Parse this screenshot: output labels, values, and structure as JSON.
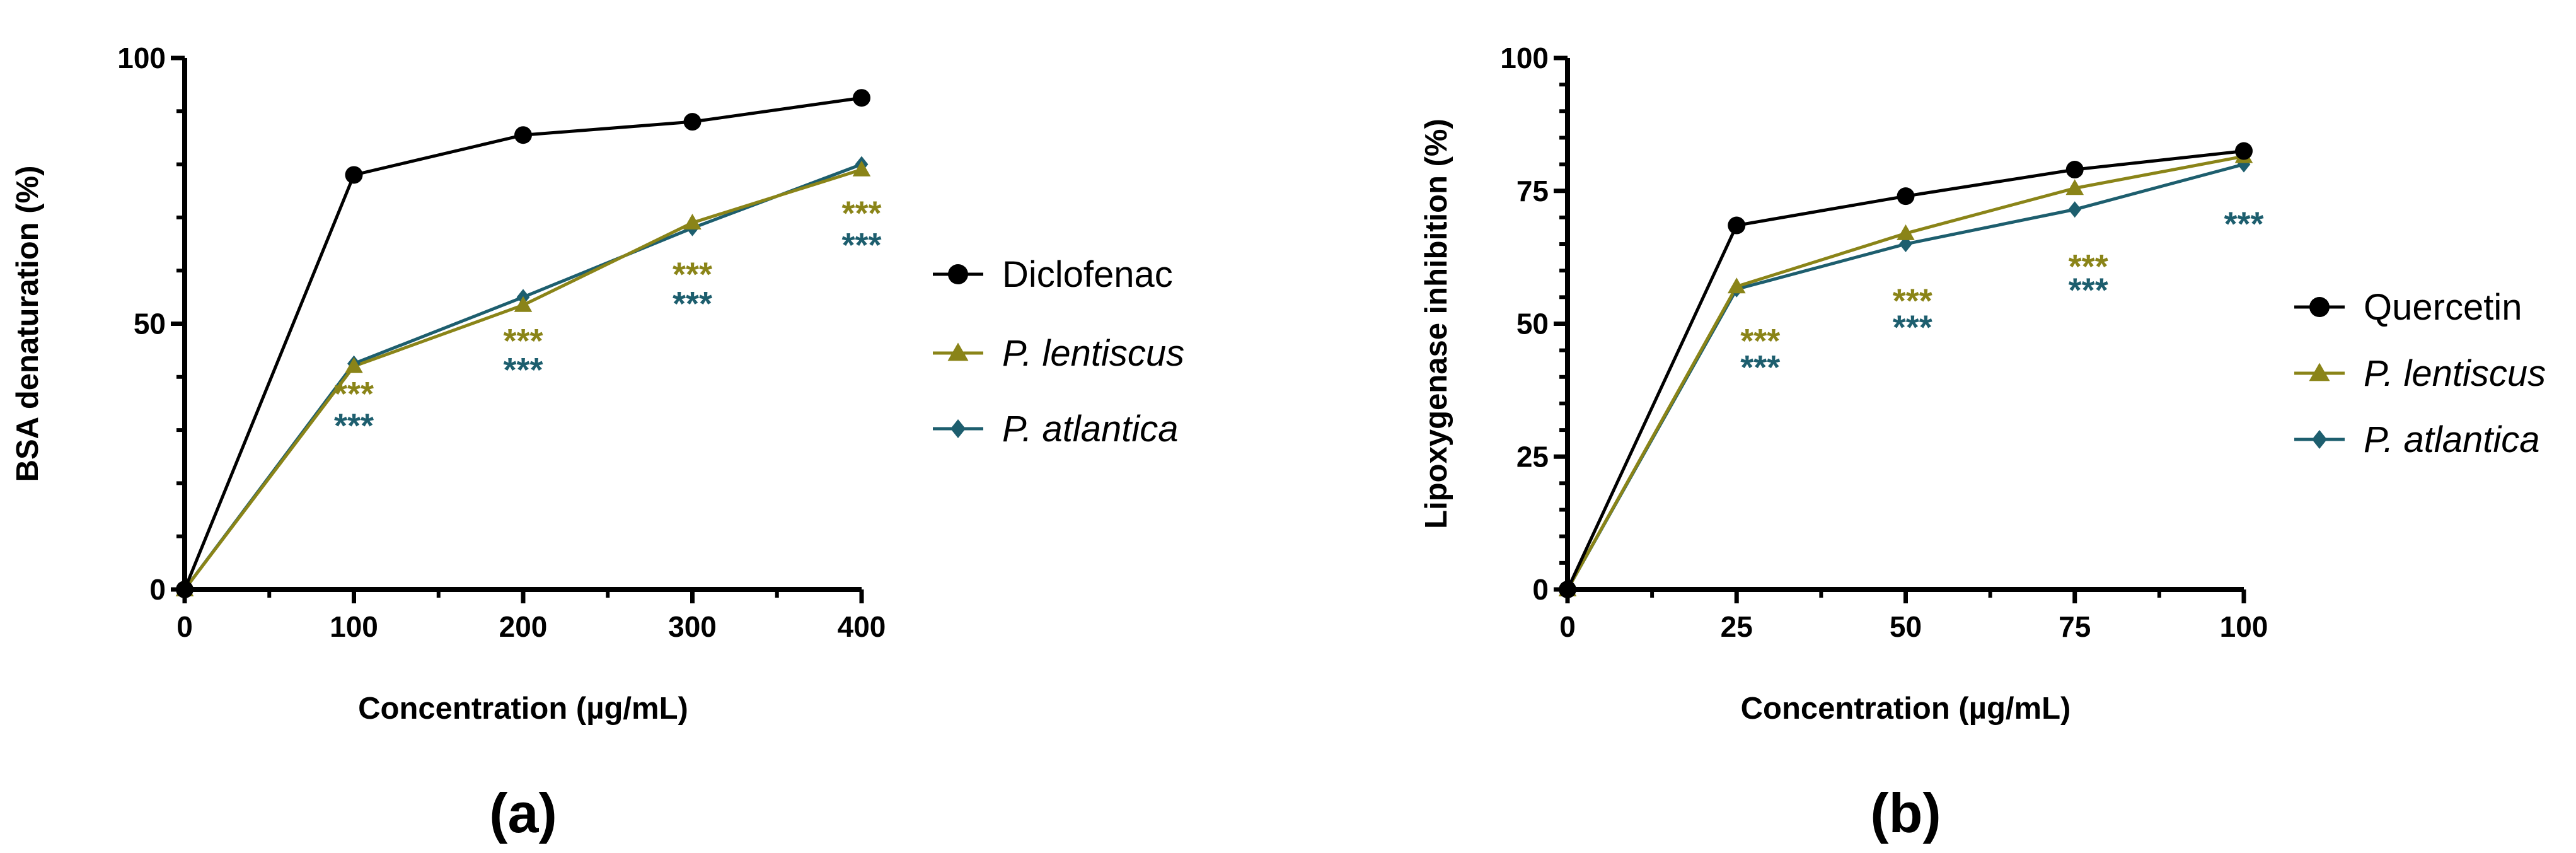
{
  "chart_data": [
    {
      "type": "line",
      "panel_label": "(a)",
      "xlabel": "Concentration (µg/mL)",
      "ylabel": "BSA denaturation (%)",
      "xlim": [
        0,
        400
      ],
      "ylim": [
        0,
        100
      ],
      "xticks": [
        "0",
        "100",
        "200",
        "300",
        "400"
      ],
      "yticks": [
        "0",
        "50",
        "100"
      ],
      "legend_position": "right",
      "x": [
        0,
        100,
        200,
        300,
        400
      ],
      "series": [
        {
          "name": "Diclofenac",
          "italic": false,
          "color": "#000000",
          "marker": "circle",
          "values": [
            0,
            78,
            85.5,
            88,
            92.5
          ]
        },
        {
          "name": "P. lentiscus",
          "italic": true,
          "color": "#8a8418",
          "marker": "triangle",
          "values": [
            0,
            42,
            53.5,
            69,
            79
          ]
        },
        {
          "name": "P. atlantica",
          "italic": true,
          "color": "#1d5e6e",
          "marker": "diamond",
          "values": [
            0,
            42.5,
            55,
            68,
            80
          ]
        }
      ],
      "annotations": [
        {
          "text": "***",
          "series": "P. lentiscus",
          "x": 100,
          "y": 37
        },
        {
          "text": "***",
          "series": "P. atlantica",
          "x": 100,
          "y": 31
        },
        {
          "text": "***",
          "series": "P. lentiscus",
          "x": 200,
          "y": 47
        },
        {
          "text": "***",
          "series": "P. atlantica",
          "x": 200,
          "y": 41.5
        },
        {
          "text": "***",
          "series": "P. lentiscus",
          "x": 300,
          "y": 59.5
        },
        {
          "text": "***",
          "series": "P. atlantica",
          "x": 300,
          "y": 54
        },
        {
          "text": "***",
          "series": "P. lentiscus",
          "x": 400,
          "y": 71
        },
        {
          "text": "***",
          "series": "P. atlantica",
          "x": 400,
          "y": 65
        }
      ]
    },
    {
      "type": "line",
      "panel_label": "(b)",
      "xlabel": "Concentration (µg/mL)",
      "ylabel": "Lipoxygenase inhibition (%)",
      "xlim": [
        0,
        100
      ],
      "ylim": [
        0,
        100
      ],
      "xticks": [
        "0",
        "25",
        "50",
        "75",
        "100"
      ],
      "yticks": [
        "0",
        "25",
        "50",
        "75",
        "100"
      ],
      "legend_position": "right",
      "x": [
        0,
        25,
        50,
        75,
        100
      ],
      "series": [
        {
          "name": "Quercetin",
          "italic": false,
          "color": "#000000",
          "marker": "circle",
          "values": [
            0,
            68.5,
            74,
            79,
            82.5
          ]
        },
        {
          "name": "P. lentiscus",
          "italic": true,
          "color": "#8a8418",
          "marker": "triangle",
          "values": [
            0,
            57,
            67,
            75.5,
            81.5
          ]
        },
        {
          "name": "P. atlantica",
          "italic": true,
          "color": "#1d5e6e",
          "marker": "diamond",
          "values": [
            0,
            56.5,
            65,
            71.5,
            80
          ]
        }
      ],
      "annotations": [
        {
          "text": "***",
          "series": "P. lentiscus",
          "x": 28.5,
          "y": 47
        },
        {
          "text": "***",
          "series": "P. atlantica",
          "x": 28.5,
          "y": 42
        },
        {
          "text": "***",
          "series": "P. lentiscus",
          "x": 51,
          "y": 54.5
        },
        {
          "text": "***",
          "series": "P. atlantica",
          "x": 51,
          "y": 49.5
        },
        {
          "text": "***",
          "series": "P. lentiscus",
          "x": 77,
          "y": 61
        },
        {
          "text": "***",
          "series": "P. atlantica",
          "x": 77,
          "y": 56.5
        },
        {
          "text": "***",
          "series": "P. atlantica",
          "x": 100,
          "y": 69
        }
      ]
    }
  ]
}
